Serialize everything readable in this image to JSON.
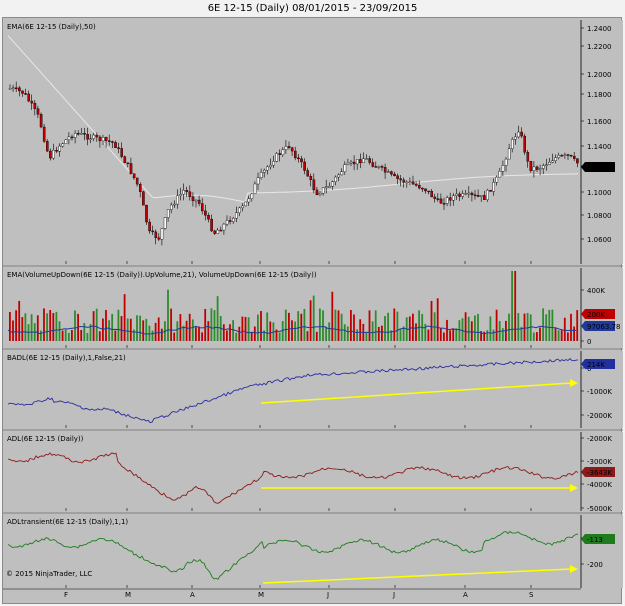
{
  "window": {
    "title": "6E 12-15 (Daily)  08/01/2015 - 23/09/2015"
  },
  "panels": [
    {
      "id": "price",
      "label": "EMA(6E 12-15 (Daily),50)",
      "ticks": [
        "1.2400",
        "1.2200",
        "1.2000",
        "1.1800",
        "1.1600",
        "1.1400",
        "1.1200",
        "1.1000",
        "1.0800",
        "1.0600"
      ],
      "current": "1.1218",
      "current_color": "#000000"
    },
    {
      "id": "volume",
      "label": "EMA(VolumeUpDown(6E 12-15 (Daily)).UpVolume,21), VolumeUpDown(6E 12-15 (Daily))",
      "ticks": [
        "400K",
        "0"
      ],
      "badges": [
        {
          "text": "200K",
          "color": "#c00000"
        },
        {
          "text": "97063.78",
          "color": "#1f3a9a"
        }
      ]
    },
    {
      "id": "badl",
      "label": "BADL(6E 12-15 (Daily),1,False,21)",
      "ticks": [
        "0",
        "-1000K",
        "-2000K"
      ],
      "current": "214K",
      "current_color": "#2030a0"
    },
    {
      "id": "adl",
      "label": "ADL(6E 12-15 (Daily))",
      "ticks": [
        "-2000K",
        "-3000K",
        "-4000K",
        "-5000K"
      ],
      "current": "-3643K",
      "current_color": "#8b1a1a"
    },
    {
      "id": "adlt",
      "label": "ADLtransient(6E 12-15 (Daily),1,1)",
      "ticks": [
        "0",
        "-200"
      ],
      "current": "-113",
      "current_color": "#1e7b1e"
    }
  ],
  "x_axis": {
    "months": [
      "F",
      "M",
      "A",
      "M",
      "J",
      "J",
      "A",
      "S"
    ]
  },
  "copyright": "© 2015 NinjaTrader, LLC",
  "colors": {
    "up": "#ffffff",
    "down": "#c00000",
    "ema": "#e8e8e8",
    "badl": "#2a2aa0",
    "adl": "#8b1a1a",
    "adlt": "#1e7b1e",
    "arrow": "#ffff00",
    "panel_bg": "#bfbfbf"
  }
}
